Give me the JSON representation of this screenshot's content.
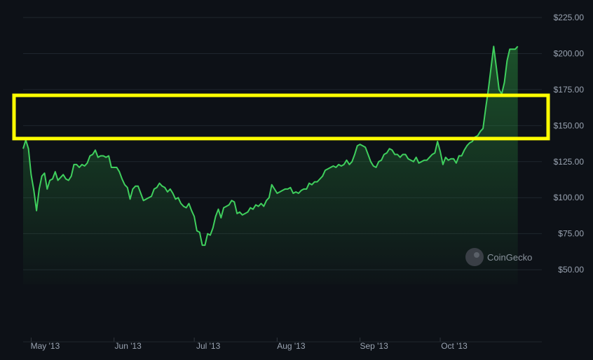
{
  "chart_data": {
    "type": "area",
    "ylim": [
      0,
      225
    ],
    "y_ticks": [
      50,
      75,
      100,
      125,
      150,
      175,
      200,
      225
    ],
    "y_tick_labels": [
      "$50.00",
      "$75.00",
      "$100.00",
      "$125.00",
      "$150.00",
      "$175.00",
      "$200.00",
      "$225.00"
    ],
    "x_range": [
      "2013-04-28",
      "2013-11-08"
    ],
    "x_ticks": [
      "2013-05-01",
      "2013-06-01",
      "2013-07-01",
      "2013-08-01",
      "2013-09-01",
      "2013-10-01"
    ],
    "x_tick_labels": [
      "May '13",
      "Jun '13",
      "Jul '13",
      "Aug '13",
      "Sep '13",
      "Oct '13"
    ],
    "grid": true,
    "line_color": "#3fcf5d",
    "highlight_range": [
      141,
      171
    ],
    "highlight_color": "#ffff00",
    "series": [
      {
        "points": [
          [
            "2013-04-28",
            134
          ],
          [
            "2013-04-29",
            140
          ],
          [
            "2013-04-30",
            134
          ],
          [
            "2013-05-01",
            116
          ],
          [
            "2013-05-02",
            105
          ],
          [
            "2013-05-03",
            91
          ],
          [
            "2013-05-04",
            106
          ],
          [
            "2013-05-05",
            115
          ],
          [
            "2013-05-06",
            117
          ],
          [
            "2013-05-07",
            106
          ],
          [
            "2013-05-08",
            112
          ],
          [
            "2013-05-09",
            113
          ],
          [
            "2013-05-10",
            118
          ],
          [
            "2013-05-11",
            112
          ],
          [
            "2013-05-12",
            114
          ],
          [
            "2013-05-13",
            116
          ],
          [
            "2013-05-14",
            113
          ],
          [
            "2013-05-15",
            112
          ],
          [
            "2013-05-16",
            115
          ],
          [
            "2013-05-17",
            123
          ],
          [
            "2013-05-18",
            123
          ],
          [
            "2013-05-19",
            121
          ],
          [
            "2013-05-20",
            123
          ],
          [
            "2013-05-21",
            122
          ],
          [
            "2013-05-22",
            124
          ],
          [
            "2013-05-23",
            129
          ],
          [
            "2013-05-24",
            130
          ],
          [
            "2013-05-25",
            133
          ],
          [
            "2013-05-26",
            128
          ],
          [
            "2013-05-27",
            129
          ],
          [
            "2013-05-28",
            129
          ],
          [
            "2013-05-29",
            128
          ],
          [
            "2013-05-30",
            129
          ],
          [
            "2013-05-31",
            121
          ],
          [
            "2013-06-01",
            121
          ],
          [
            "2013-06-02",
            121
          ],
          [
            "2013-06-03",
            118
          ],
          [
            "2013-06-04",
            113
          ],
          [
            "2013-06-05",
            109
          ],
          [
            "2013-06-06",
            107
          ],
          [
            "2013-06-07",
            99
          ],
          [
            "2013-06-08",
            106
          ],
          [
            "2013-06-09",
            108
          ],
          [
            "2013-06-10",
            108
          ],
          [
            "2013-06-11",
            103
          ],
          [
            "2013-06-12",
            98
          ],
          [
            "2013-06-13",
            99
          ],
          [
            "2013-06-14",
            100
          ],
          [
            "2013-06-15",
            101
          ],
          [
            "2013-06-16",
            106
          ],
          [
            "2013-06-17",
            107
          ],
          [
            "2013-06-18",
            110
          ],
          [
            "2013-06-19",
            108
          ],
          [
            "2013-06-20",
            107
          ],
          [
            "2013-06-21",
            104
          ],
          [
            "2013-06-22",
            106
          ],
          [
            "2013-06-23",
            103
          ],
          [
            "2013-06-24",
            99
          ],
          [
            "2013-06-25",
            100
          ],
          [
            "2013-06-26",
            96
          ],
          [
            "2013-06-27",
            94
          ],
          [
            "2013-06-28",
            93
          ],
          [
            "2013-06-29",
            96
          ],
          [
            "2013-06-30",
            91
          ],
          [
            "2013-07-01",
            87
          ],
          [
            "2013-07-02",
            77
          ],
          [
            "2013-07-03",
            76
          ],
          [
            "2013-07-04",
            67
          ],
          [
            "2013-07-05",
            67
          ],
          [
            "2013-07-06",
            75
          ],
          [
            "2013-07-07",
            74
          ],
          [
            "2013-07-08",
            79
          ],
          [
            "2013-07-09",
            87
          ],
          [
            "2013-07-10",
            92
          ],
          [
            "2013-07-11",
            86
          ],
          [
            "2013-07-12",
            93
          ],
          [
            "2013-07-13",
            94
          ],
          [
            "2013-07-14",
            95
          ],
          [
            "2013-07-15",
            98
          ],
          [
            "2013-07-16",
            97
          ],
          [
            "2013-07-17",
            89
          ],
          [
            "2013-07-18",
            90
          ],
          [
            "2013-07-19",
            88
          ],
          [
            "2013-07-20",
            89
          ],
          [
            "2013-07-21",
            90
          ],
          [
            "2013-07-22",
            93
          ],
          [
            "2013-07-23",
            92
          ],
          [
            "2013-07-24",
            95
          ],
          [
            "2013-07-25",
            94
          ],
          [
            "2013-07-26",
            96
          ],
          [
            "2013-07-27",
            94
          ],
          [
            "2013-07-28",
            98
          ],
          [
            "2013-07-29",
            100
          ],
          [
            "2013-07-30",
            109
          ],
          [
            "2013-07-31",
            106
          ],
          [
            "2013-08-01",
            103
          ],
          [
            "2013-08-02",
            104
          ],
          [
            "2013-08-03",
            105
          ],
          [
            "2013-08-04",
            106
          ],
          [
            "2013-08-05",
            106
          ],
          [
            "2013-08-06",
            107
          ],
          [
            "2013-08-07",
            103
          ],
          [
            "2013-08-08",
            104
          ],
          [
            "2013-08-09",
            103
          ],
          [
            "2013-08-10",
            105
          ],
          [
            "2013-08-11",
            106
          ],
          [
            "2013-08-12",
            106
          ],
          [
            "2013-08-13",
            110
          ],
          [
            "2013-08-14",
            109
          ],
          [
            "2013-08-15",
            111
          ],
          [
            "2013-08-16",
            111
          ],
          [
            "2013-08-17",
            113
          ],
          [
            "2013-08-18",
            115
          ],
          [
            "2013-08-19",
            119
          ],
          [
            "2013-08-20",
            120
          ],
          [
            "2013-08-21",
            121
          ],
          [
            "2013-08-22",
            122
          ],
          [
            "2013-08-23",
            121
          ],
          [
            "2013-08-24",
            123
          ],
          [
            "2013-08-25",
            122
          ],
          [
            "2013-08-26",
            123
          ],
          [
            "2013-08-27",
            126
          ],
          [
            "2013-08-28",
            123
          ],
          [
            "2013-08-29",
            125
          ],
          [
            "2013-08-30",
            130
          ],
          [
            "2013-08-31",
            136
          ],
          [
            "2013-09-01",
            137
          ],
          [
            "2013-09-02",
            136
          ],
          [
            "2013-09-03",
            135
          ],
          [
            "2013-09-04",
            130
          ],
          [
            "2013-09-05",
            125
          ],
          [
            "2013-09-06",
            122
          ],
          [
            "2013-09-07",
            121
          ],
          [
            "2013-09-08",
            125
          ],
          [
            "2013-09-09",
            126
          ],
          [
            "2013-09-10",
            130
          ],
          [
            "2013-09-11",
            131
          ],
          [
            "2013-09-12",
            134
          ],
          [
            "2013-09-13",
            133
          ],
          [
            "2013-09-14",
            130
          ],
          [
            "2013-09-15",
            130
          ],
          [
            "2013-09-16",
            128
          ],
          [
            "2013-09-17",
            130
          ],
          [
            "2013-09-18",
            130
          ],
          [
            "2013-09-19",
            127
          ],
          [
            "2013-09-20",
            126
          ],
          [
            "2013-09-21",
            125
          ],
          [
            "2013-09-22",
            128
          ],
          [
            "2013-09-23",
            124
          ],
          [
            "2013-09-24",
            125
          ],
          [
            "2013-09-25",
            126
          ],
          [
            "2013-09-26",
            126
          ],
          [
            "2013-09-27",
            128
          ],
          [
            "2013-09-28",
            130
          ],
          [
            "2013-09-29",
            131
          ],
          [
            "2013-09-30",
            139
          ],
          [
            "2013-10-01",
            132
          ],
          [
            "2013-10-02",
            123
          ],
          [
            "2013-10-03",
            128
          ],
          [
            "2013-10-04",
            126
          ],
          [
            "2013-10-05",
            127
          ],
          [
            "2013-10-06",
            127
          ],
          [
            "2013-10-07",
            124
          ],
          [
            "2013-10-08",
            129
          ],
          [
            "2013-10-09",
            129
          ],
          [
            "2013-10-10",
            133
          ],
          [
            "2013-10-11",
            136
          ],
          [
            "2013-10-12",
            138
          ],
          [
            "2013-10-13",
            139
          ],
          [
            "2013-10-14",
            142
          ],
          [
            "2013-10-15",
            143
          ],
          [
            "2013-10-16",
            146
          ],
          [
            "2013-10-17",
            148
          ],
          [
            "2013-10-18",
            162
          ],
          [
            "2013-10-19",
            175
          ],
          [
            "2013-10-20",
            190
          ],
          [
            "2013-10-21",
            205
          ],
          [
            "2013-10-22",
            190
          ],
          [
            "2013-10-23",
            175
          ],
          [
            "2013-10-24",
            172
          ],
          [
            "2013-10-25",
            180
          ],
          [
            "2013-10-26",
            195
          ],
          [
            "2013-10-27",
            203
          ],
          [
            "2013-10-28",
            203
          ],
          [
            "2013-10-29",
            203
          ],
          [
            "2013-10-30",
            205
          ]
        ]
      }
    ]
  },
  "watermark": {
    "text": "CoinGecko",
    "icon": "coingecko-logo-icon"
  }
}
